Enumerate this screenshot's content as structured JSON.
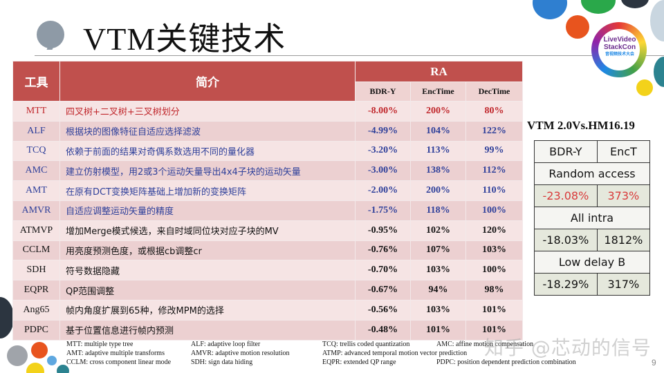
{
  "title": "VTM关键技术",
  "logo": {
    "line1": "LiveVideo",
    "line2": "StackCon",
    "line3": "音视频技术大会"
  },
  "table": {
    "header": {
      "tool": "工具",
      "desc": "简介",
      "group": "RA"
    },
    "subheaders": [
      "BDR-Y",
      "EncTime",
      "DecTime"
    ],
    "rows": [
      {
        "tool": "MTT",
        "desc": "四叉树+二叉树+三叉树划分",
        "bdr": "-8.00%",
        "enc": "200%",
        "dec": "80%",
        "color": "red"
      },
      {
        "tool": "ALF",
        "desc": "根据块的图像特征自适应选择滤波",
        "bdr": "-4.99%",
        "enc": "104%",
        "dec": "122%",
        "color": "blue"
      },
      {
        "tool": "TCQ",
        "desc": "依赖于前面的结果对奇偶系数选用不同的量化器",
        "bdr": "-3.20%",
        "enc": "113%",
        "dec": "99%",
        "color": "blue"
      },
      {
        "tool": "AMC",
        "desc": "建立仿射模型，用2或3个运动矢量导出4x4子块的运动矢量",
        "bdr": "-3.00%",
        "enc": "138%",
        "dec": "112%",
        "color": "blue"
      },
      {
        "tool": "AMT",
        "desc": "在原有DCT变换矩阵基础上增加新的变换矩阵",
        "bdr": "-2.00%",
        "enc": "200%",
        "dec": "110%",
        "color": "blue"
      },
      {
        "tool": "AMVR",
        "desc": "自适应调整运动矢量的精度",
        "bdr": "-1.75%",
        "enc": "118%",
        "dec": "100%",
        "color": "blue"
      },
      {
        "tool": "ATMVP",
        "desc": "增加Merge模式候选，来自时域同位块对应子块的MV",
        "bdr": "-0.95%",
        "enc": "102%",
        "dec": "120%",
        "color": "black"
      },
      {
        "tool": "CCLM",
        "desc": "用亮度预测色度，或根据cb调整cr",
        "bdr": "-0.76%",
        "enc": "107%",
        "dec": "103%",
        "color": "black"
      },
      {
        "tool": "SDH",
        "desc": "符号数据隐藏",
        "bdr": "-0.70%",
        "enc": "103%",
        "dec": "100%",
        "color": "black"
      },
      {
        "tool": "EQPR",
        "desc": "QP范围调整",
        "bdr": "-0.67%",
        "enc": "94%",
        "dec": "98%",
        "color": "black"
      },
      {
        "tool": "Ang65",
        "desc": "帧内角度扩展到65种，修改MPM的选择",
        "bdr": "-0.56%",
        "enc": "103%",
        "dec": "101%",
        "color": "black"
      },
      {
        "tool": "PDPC",
        "desc": "基于位置信息进行帧内预测",
        "bdr": "-0.48%",
        "enc": "101%",
        "dec": "101%",
        "color": "black"
      }
    ]
  },
  "comparison": {
    "title": "VTM  2.0Vs.HM16.19",
    "col1": "BDR-Y",
    "col2": "EncT",
    "groups": [
      {
        "label": "Random access",
        "bdr": "-23.08%",
        "enc": "373%"
      },
      {
        "label": "All intra",
        "bdr": "-18.03%",
        "enc": "1812%"
      },
      {
        "label": "Low delay B",
        "bdr": "-18.29%",
        "enc": "317%"
      }
    ]
  },
  "footer": {
    "lines": [
      [
        "MTT: multiple type tree",
        "ALF:   adaptive loop filter",
        "TCQ: trellis coded quantization",
        "AMC: affine motion compensation"
      ],
      [
        "AMT: adaptive multiple transforms",
        "AMVR: adaptive motion resolution",
        "ATMP: advanced temporal motion vector prediction",
        ""
      ],
      [
        "CCLM: cross component linear mode",
        "SDH: sign data hiding",
        "EQPR: extended QP range",
        "PDPC: position dependent prediction combination"
      ]
    ]
  },
  "watermark": "知乎 @芯动的信号",
  "page_number": "9",
  "colors": {
    "header_red": "#c0504d",
    "text_red": "#c0262b",
    "text_blue": "#2e3f9a",
    "row_light": "#f6e4e4",
    "row_dark": "#ecd0d1"
  }
}
